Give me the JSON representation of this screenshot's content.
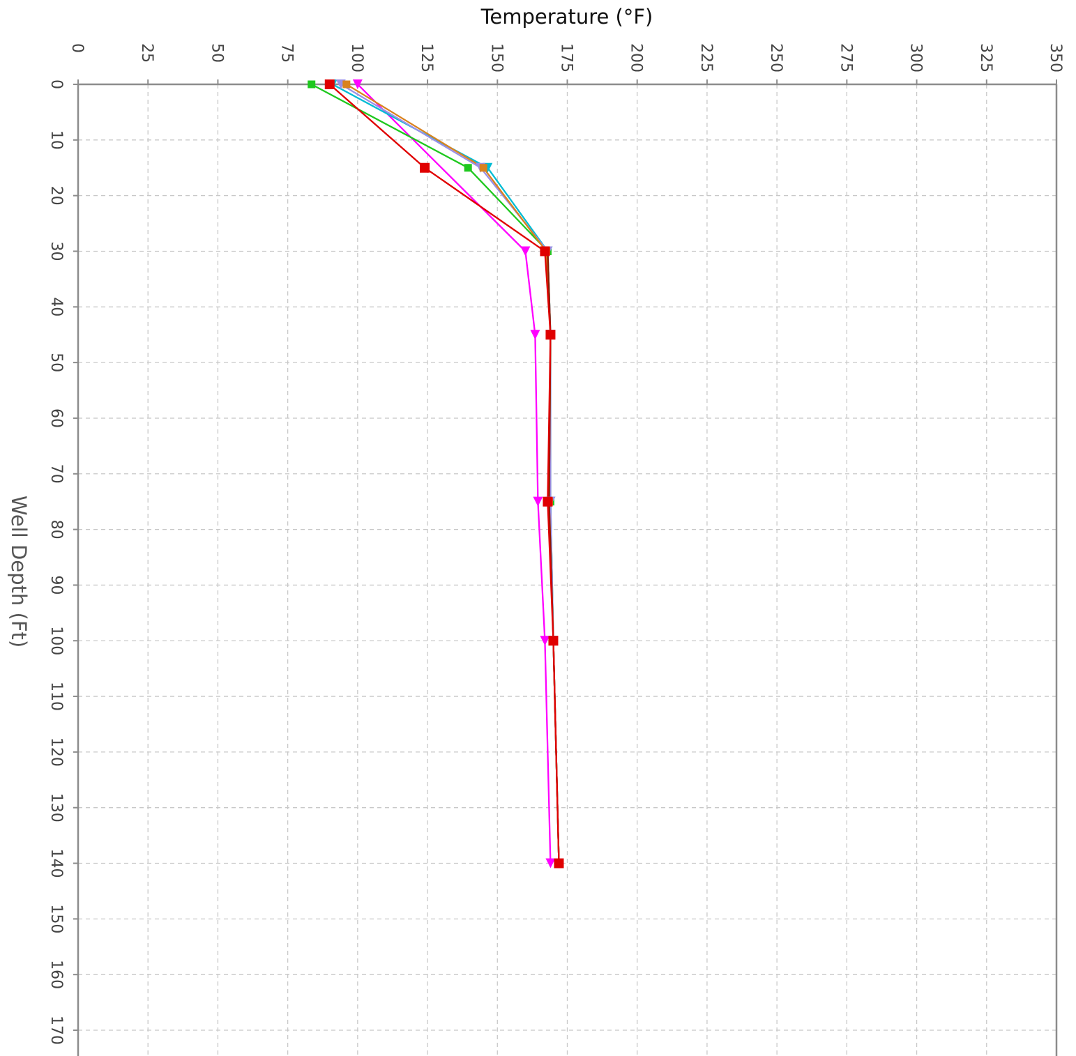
{
  "chart_data": {
    "type": "line",
    "xlabel": "Temperature (°F)",
    "ylabel": "Well Depth (Ft)",
    "xlim": [
      0,
      350
    ],
    "ylim": [
      0,
      175
    ],
    "y_inverted": true,
    "x_axis_position": "top",
    "x_ticks": [
      0,
      25,
      50,
      75,
      100,
      125,
      150,
      175,
      200,
      225,
      250,
      275,
      300,
      325,
      350
    ],
    "y_ticks": [
      0,
      10,
      20,
      30,
      40,
      50,
      60,
      70,
      80,
      90,
      100,
      110,
      120,
      130,
      140,
      150,
      160,
      170
    ],
    "grid": true,
    "series": [
      {
        "color": "#ff00ff",
        "marker": "triangle-down",
        "points": [
          [
            100,
            0
          ],
          [
            160,
            30
          ],
          [
            163.5,
            45
          ],
          [
            164.5,
            75
          ],
          [
            167,
            100
          ],
          [
            169,
            140
          ]
        ]
      },
      {
        "color": "#1ec81e",
        "marker": "square",
        "points": [
          [
            83.5,
            0
          ],
          [
            139.5,
            15
          ],
          [
            168,
            30
          ],
          [
            169,
            45
          ],
          [
            169,
            75
          ],
          [
            170,
            100
          ],
          [
            172,
            140
          ]
        ]
      },
      {
        "color": "#00bcd4",
        "marker": "triangle-down",
        "points": [
          [
            91,
            0
          ],
          [
            146.5,
            15
          ],
          [
            168,
            30
          ],
          [
            169,
            45
          ],
          [
            169,
            75
          ],
          [
            170,
            100
          ],
          [
            172,
            140
          ]
        ]
      },
      {
        "color": "#9a8fe6",
        "marker": "triangle-down",
        "points": [
          [
            94,
            0
          ],
          [
            144,
            15
          ],
          [
            168,
            30
          ],
          [
            169,
            45
          ],
          [
            169,
            75
          ],
          [
            170,
            100
          ],
          [
            172,
            140
          ]
        ]
      },
      {
        "color": "#d9821f",
        "marker": "square",
        "points": [
          [
            96,
            0
          ],
          [
            145,
            15
          ],
          [
            167.5,
            30
          ],
          [
            169,
            45
          ],
          [
            168.5,
            75
          ],
          [
            170,
            100
          ],
          [
            172,
            140
          ]
        ]
      },
      {
        "color": "#8b1a00",
        "marker": "none",
        "points": [
          [
            168,
            30
          ],
          [
            169,
            45
          ],
          [
            168.5,
            75
          ],
          [
            170,
            100
          ],
          [
            172,
            140
          ]
        ]
      },
      {
        "color": "#e00000",
        "marker": "square",
        "points": [
          [
            90,
            0
          ],
          [
            124,
            15
          ],
          [
            167,
            30
          ],
          [
            169,
            45
          ],
          [
            168,
            75
          ],
          [
            170,
            100
          ],
          [
            172,
            140
          ]
        ]
      }
    ]
  }
}
